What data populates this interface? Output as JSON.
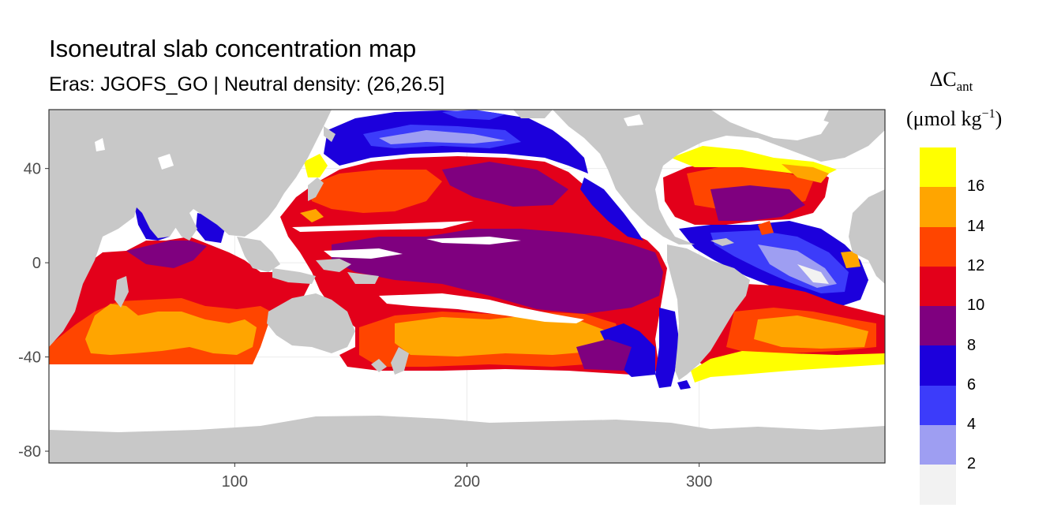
{
  "title": "Isoneutral slab concentration map",
  "subtitle": "Eras: JGOFS_GO | Neutral density: (26,26.5]",
  "legend": {
    "title_main": "ΔC",
    "title_sub": "ant",
    "units_prefix": "(μmol kg",
    "units_sup": "−1",
    "units_suffix": ")",
    "labels": [
      "16",
      "14",
      "12",
      "10",
      "8",
      "6",
      "4",
      "2"
    ],
    "colors": [
      "#FFFF00",
      "#FFA500",
      "#FF4500",
      "#E3001A",
      "#7F007F",
      "#1C00DC",
      "#3C3CFA",
      "#9E9EF2",
      "#F2F2F2"
    ]
  },
  "chart_data": {
    "type": "heatmap",
    "title": "Isoneutral slab concentration map",
    "subtitle": "Eras: JGOFS_GO | Neutral density: (26,26.5]",
    "xlabel": "",
    "ylabel": "",
    "x_ticks": [
      100,
      200,
      300
    ],
    "y_ticks": [
      40,
      0,
      -40,
      -80
    ],
    "xlim": [
      20,
      380
    ],
    "ylim": [
      -85,
      65
    ],
    "grid": true,
    "legend_position": "right",
    "color_breaks": [
      2,
      4,
      6,
      8,
      10,
      12,
      14,
      16
    ],
    "land_color": "#C8C8C8"
  }
}
